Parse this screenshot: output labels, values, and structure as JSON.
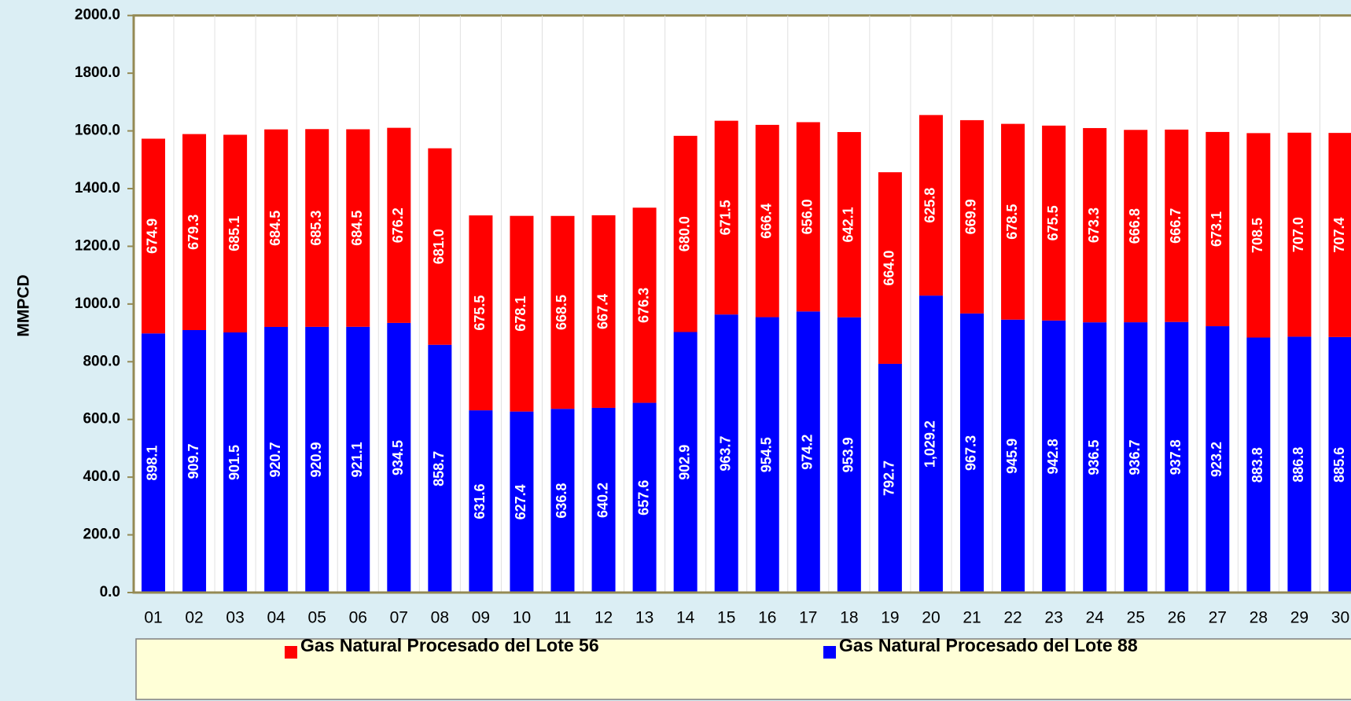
{
  "chart_data": {
    "type": "stacked_bar",
    "y_label": "MMPCD",
    "categories": [
      "01",
      "02",
      "03",
      "04",
      "05",
      "06",
      "07",
      "08",
      "09",
      "10",
      "11",
      "12",
      "13",
      "14",
      "15",
      "16",
      "17",
      "18",
      "19",
      "20",
      "21",
      "22",
      "23",
      "24",
      "25",
      "26",
      "27",
      "28",
      "29",
      "30"
    ],
    "series": [
      {
        "name": "Gas Natural Procesado del Lote 88",
        "color": "#0000ff",
        "values": [
          898.1,
          909.7,
          901.5,
          920.7,
          920.9,
          921.1,
          934.5,
          858.7,
          631.6,
          627.4,
          636.8,
          640.2,
          657.6,
          902.9,
          963.7,
          954.5,
          974.2,
          953.9,
          792.7,
          1029.2,
          967.3,
          945.9,
          942.8,
          936.5,
          936.7,
          937.8,
          923.2,
          883.8,
          886.8,
          885.6
        ],
        "value_labels": [
          "898.1",
          "909.7",
          "901.5",
          "920.7",
          "920.9",
          "921.1",
          "934.5",
          "858.7",
          "631.6",
          "627.4",
          "636.8",
          "640.2",
          "657.6",
          "902.9",
          "963.7",
          "954.5",
          "974.2",
          "953.9",
          "792.7",
          "1,029.2",
          "967.3",
          "945.9",
          "942.8",
          "936.5",
          "936.7",
          "937.8",
          "923.2",
          "883.8",
          "886.8",
          "885.6"
        ]
      },
      {
        "name": "Gas Natural Procesado del Lote 56",
        "color": "#ff0000",
        "values": [
          674.9,
          679.3,
          685.1,
          684.5,
          685.3,
          684.5,
          676.2,
          681.0,
          675.5,
          678.1,
          668.5,
          667.4,
          676.3,
          680.0,
          671.5,
          666.4,
          656.0,
          642.1,
          664.0,
          625.8,
          669.9,
          678.5,
          675.5,
          673.3,
          666.8,
          666.7,
          673.1,
          708.5,
          707.0,
          707.4
        ],
        "value_labels": [
          "674.9",
          "679.3",
          "685.1",
          "684.5",
          "685.3",
          "684.5",
          "676.2",
          "681.0",
          "675.5",
          "678.1",
          "668.5",
          "667.4",
          "676.3",
          "680.0",
          "671.5",
          "666.4",
          "656.0",
          "642.1",
          "664.0",
          "625.8",
          "669.9",
          "678.5",
          "675.5",
          "673.3",
          "666.8",
          "666.7",
          "673.1",
          "708.5",
          "707.0",
          "707.4"
        ]
      }
    ],
    "ylim": [
      0,
      2000
    ],
    "yticks": [
      {
        "value": 0,
        "label": "0.0"
      },
      {
        "value": 200,
        "label": "200.0"
      },
      {
        "value": 400,
        "label": "400.0"
      },
      {
        "value": 600,
        "label": "600.0"
      },
      {
        "value": 800,
        "label": "800.0"
      },
      {
        "value": 1000,
        "label": "1000.0"
      },
      {
        "value": 1200,
        "label": "1200.0"
      },
      {
        "value": 1400,
        "label": "1400.0"
      },
      {
        "value": 1600,
        "label": "1600.0"
      },
      {
        "value": 1800,
        "label": "1800.0"
      },
      {
        "value": 2000,
        "label": "2000.0"
      }
    ],
    "legend_order": [
      1,
      0
    ]
  }
}
